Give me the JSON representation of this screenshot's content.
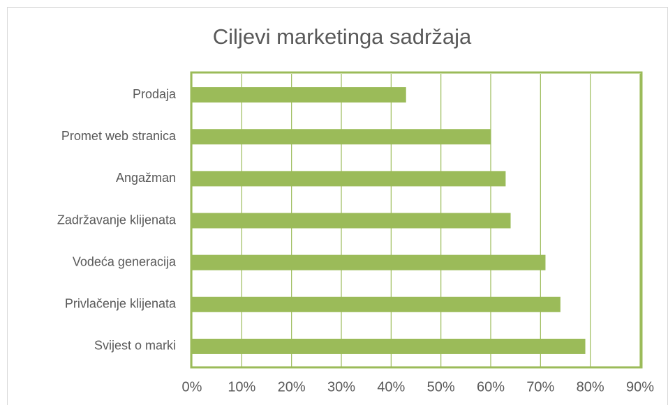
{
  "chart_data": {
    "type": "bar",
    "orientation": "horizontal",
    "title": "Ciljevi marketinga sadržaja",
    "categories": [
      "Prodaja",
      "Promet web stranica",
      "Angažman",
      "Zadržavanje klijenata",
      "Vodeća generacija",
      "Privlačenje klijenata",
      "Svijest o marki"
    ],
    "values": [
      43,
      60,
      63,
      64,
      71,
      74,
      79
    ],
    "color": "#9bbb59",
    "xlim": [
      0,
      90
    ],
    "xticks": [
      {
        "value": 0,
        "label": "0%"
      },
      {
        "value": 10,
        "label": "10%"
      },
      {
        "value": 20,
        "label": "20%"
      },
      {
        "value": 30,
        "label": "30%"
      },
      {
        "value": 40,
        "label": "40%"
      },
      {
        "value": 50,
        "label": "50%"
      },
      {
        "value": 60,
        "label": "60%"
      },
      {
        "value": 70,
        "label": "70%"
      },
      {
        "value": 80,
        "label": "80%"
      },
      {
        "value": 90,
        "label": "90%"
      }
    ],
    "grid": true
  }
}
